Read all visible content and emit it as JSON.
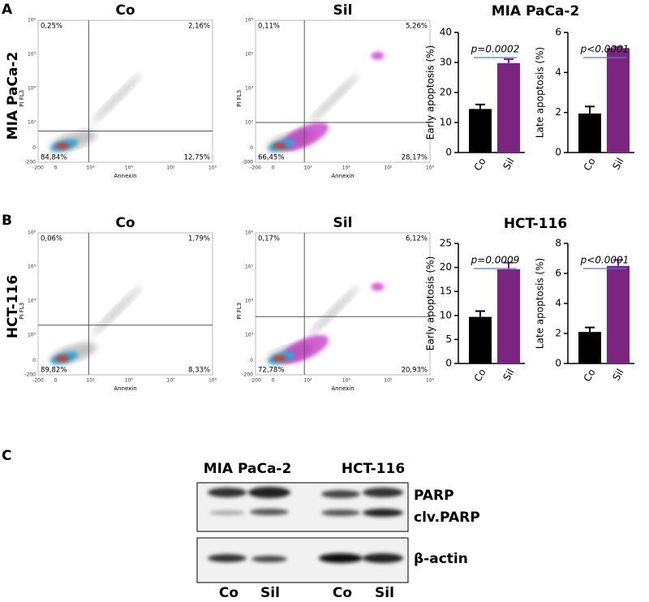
{
  "panel_labels": [
    "A",
    "B",
    "C"
  ],
  "row_labels": [
    "MIA PaCa-2",
    "HCT-116"
  ],
  "bar_group_titles": [
    "MIA PaCa-2",
    "HCT-116"
  ],
  "flow_axes": {
    "xlabel": "Annexin",
    "ylabel": "PI FL3",
    "xticks": [
      "-200",
      "0",
      "10³",
      "10⁴",
      "10⁵",
      "10⁶"
    ],
    "yticks": [
      "10⁶",
      "10⁵",
      "10⁴",
      "10³",
      "0",
      "-200"
    ]
  },
  "flow_plots": [
    {
      "title": "Co",
      "quadrants": [
        "0,25%",
        "2,16%",
        "84,84%",
        "12,75%"
      ]
    },
    {
      "title": "Sil",
      "quadrants": [
        "0,11%",
        "5,26%",
        "66,45%",
        "28,17%"
      ]
    },
    {
      "title": "Co",
      "quadrants": [
        "0,06%",
        "1,79%",
        "89,82%",
        "8,33%"
      ]
    },
    {
      "title": "Sil",
      "quadrants": [
        "0,17%",
        "6,12%",
        "72,78%",
        "20,93%"
      ]
    }
  ],
  "chart_data": [
    {
      "type": "bar",
      "ylabel": "Early apoptosis (%)",
      "categories": [
        "Co",
        "Sil"
      ],
      "values": [
        14.5,
        29.8
      ],
      "errors": [
        1.5,
        1.3
      ],
      "colors": [
        "#000000",
        "#7b2482"
      ],
      "ylim": [
        0,
        40
      ],
      "yticks": [
        0,
        10,
        20,
        30,
        40
      ],
      "annotation": "p=0.0002"
    },
    {
      "type": "bar",
      "ylabel": "Late apoptosis (%)",
      "categories": [
        "Co",
        "Sil"
      ],
      "values": [
        1.95,
        5.22
      ],
      "errors": [
        0.35,
        0.05
      ],
      "colors": [
        "#000000",
        "#7b2482"
      ],
      "ylim": [
        0,
        6
      ],
      "yticks": [
        0,
        2,
        4,
        6
      ],
      "annotation": "p<0.0001"
    },
    {
      "type": "bar",
      "ylabel": "Early apoptosis (%)",
      "categories": [
        "Co",
        "Sil"
      ],
      "values": [
        9.7,
        19.6
      ],
      "errors": [
        1.2,
        1.4
      ],
      "colors": [
        "#000000",
        "#7b2482"
      ],
      "ylim": [
        0,
        25
      ],
      "yticks": [
        0,
        5,
        10,
        15,
        20,
        25
      ],
      "annotation": "p=0.0009"
    },
    {
      "type": "bar",
      "ylabel": "Late apoptosis (%)",
      "categories": [
        "Co",
        "Sil"
      ],
      "values": [
        2.1,
        6.5
      ],
      "errors": [
        0.3,
        0.4
      ],
      "colors": [
        "#000000",
        "#7b2482"
      ],
      "ylim": [
        0,
        8
      ],
      "yticks": [
        0,
        2,
        4,
        6,
        8
      ],
      "annotation": "p<0.0001"
    }
  ],
  "western_blot": {
    "groups": [
      "MIA PaCa-2",
      "HCT-116"
    ],
    "lanes": [
      "Co",
      "Sil",
      "Co",
      "Sil"
    ],
    "bands": [
      "PARP",
      "clv.PARP",
      "β-actin"
    ]
  }
}
